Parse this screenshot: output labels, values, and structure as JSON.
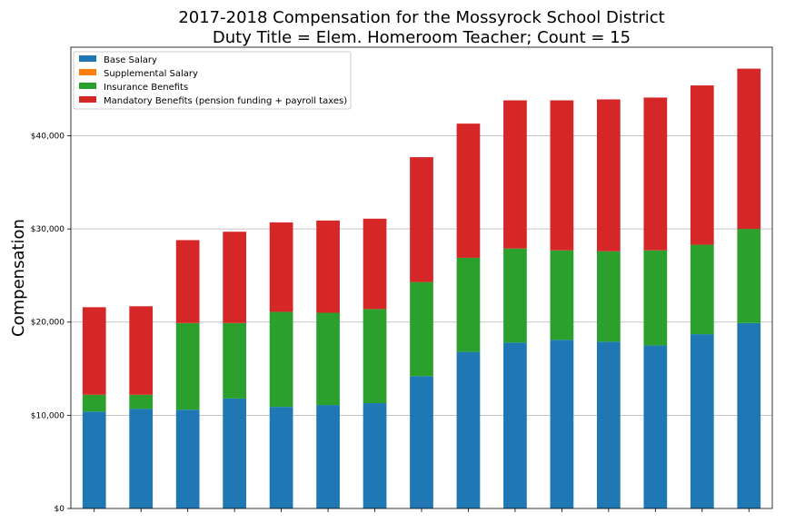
{
  "chart_data": {
    "type": "bar",
    "stacked": true,
    "title_lines": [
      "2017-2018 Compensation for the Mossyrock School District",
      "Duty Title = Elem. Homeroom Teacher; Count = 15"
    ],
    "xlabel": "",
    "ylabel": "Compensation",
    "ylim": [
      0,
      49500
    ],
    "yticks": [
      0,
      10000,
      20000,
      30000,
      40000
    ],
    "ytick_labels": [
      "$0",
      "$10,000",
      "$20,000",
      "$30,000",
      "$40,000"
    ],
    "grid": "horizontal",
    "legend_position": "top-left",
    "categories_count": 15,
    "series": [
      {
        "name": "Base Salary",
        "color": "#1f77b4",
        "values": [
          10400,
          10700,
          10600,
          11800,
          10900,
          11100,
          11300,
          14200,
          16800,
          17800,
          18100,
          17900,
          17500,
          18700,
          19900
        ]
      },
      {
        "name": "Supplemental Salary",
        "color": "#ff7f0e",
        "values": [
          0,
          0,
          0,
          0,
          0,
          0,
          0,
          0,
          0,
          0,
          0,
          0,
          0,
          0,
          0
        ]
      },
      {
        "name": "Insurance Benefits",
        "color": "#2ca02c",
        "values": [
          1800,
          1500,
          9300,
          8100,
          10200,
          9900,
          10100,
          10100,
          10100,
          10100,
          9600,
          9700,
          10200,
          9600,
          10100
        ]
      },
      {
        "name": "Mandatory Benefits (pension funding + payroll taxes)",
        "color": "#d62728",
        "values": [
          9400,
          9500,
          8900,
          9800,
          9600,
          9900,
          9700,
          13400,
          14400,
          15900,
          16100,
          16300,
          16400,
          17100,
          17200
        ]
      }
    ]
  }
}
